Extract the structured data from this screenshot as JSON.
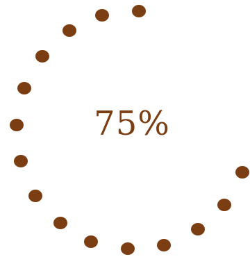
{
  "progress": {
    "percent_text": "75%",
    "value": 0.75,
    "accent_color": "#7A3E12"
  }
}
